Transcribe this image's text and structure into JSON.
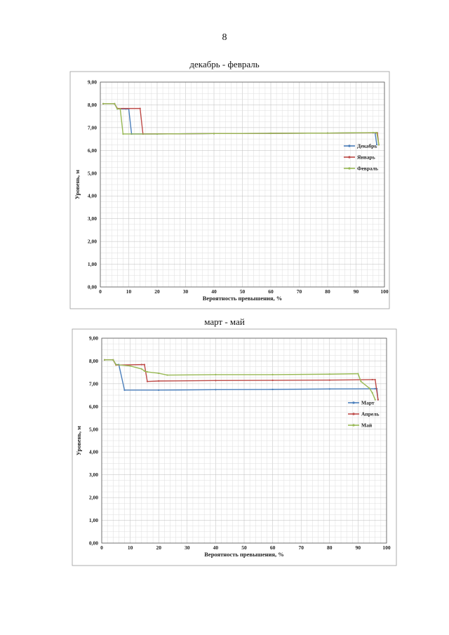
{
  "page_number": "8",
  "chart_data": [
    {
      "type": "line",
      "title": "декабрь - февраль",
      "xlabel": "Вероятность превышения, %",
      "ylabel": "Уровень, м",
      "xlim": [
        0,
        100
      ],
      "ylim": [
        0,
        9
      ],
      "xticks": [
        "0",
        "10",
        "20",
        "30",
        "40",
        "50",
        "60",
        "70",
        "80",
        "90",
        "100"
      ],
      "yticks": [
        "0,00",
        "1,00",
        "2,00",
        "3,00",
        "4,00",
        "5,00",
        "6,00",
        "7,00",
        "8,00",
        "9,00"
      ],
      "grid": true,
      "legend": "right",
      "series": [
        {
          "name": "Декабрь",
          "color": "#4a7ebb",
          "points": [
            [
              1,
              8.05
            ],
            [
              5,
              8.05
            ],
            [
              6,
              7.82
            ],
            [
              9,
              7.82
            ],
            [
              10,
              7.82
            ],
            [
              11,
              6.72
            ],
            [
              20,
              6.72
            ],
            [
              40,
              6.74
            ],
            [
              60,
              6.75
            ],
            [
              80,
              6.76
            ],
            [
              96,
              6.77
            ],
            [
              96.7,
              6.77
            ],
            [
              97.3,
              6.25
            ]
          ]
        },
        {
          "name": "Январь",
          "color": "#be4b48",
          "points": [
            [
              1,
              8.05
            ],
            [
              5,
              8.05
            ],
            [
              6,
              7.84
            ],
            [
              14,
              7.84
            ],
            [
              15,
              6.72
            ],
            [
              40,
              6.74
            ],
            [
              60,
              6.75
            ],
            [
              80,
              6.76
            ],
            [
              97,
              6.77
            ],
            [
              97.5,
              6.77
            ],
            [
              98,
              6.25
            ]
          ]
        },
        {
          "name": "Февраль",
          "color": "#98b954",
          "points": [
            [
              1,
              8.05
            ],
            [
              5,
              8.05
            ],
            [
              6,
              7.82
            ],
            [
              7,
              7.82
            ],
            [
              8,
              6.72
            ],
            [
              20,
              6.72
            ],
            [
              40,
              6.74
            ],
            [
              60,
              6.75
            ],
            [
              80,
              6.76
            ],
            [
              96,
              6.78
            ],
            [
              97.3,
              6.78
            ],
            [
              98,
              6.25
            ]
          ]
        }
      ]
    },
    {
      "type": "line",
      "title": "март - май",
      "xlabel": "Вероятность превышения, %",
      "ylabel": "Уровень, м",
      "xlim": [
        0,
        100
      ],
      "ylim": [
        0,
        9
      ],
      "xticks": [
        "0",
        "10",
        "20",
        "30",
        "40",
        "50",
        "60",
        "70",
        "80",
        "90",
        "100"
      ],
      "yticks": [
        "0,00",
        "1,00",
        "2,00",
        "3,00",
        "4,00",
        "5,00",
        "6,00",
        "7,00",
        "8,00",
        "9,00"
      ],
      "grid": true,
      "legend": "right",
      "series": [
        {
          "name": "Март",
          "color": "#4a7ebb",
          "points": [
            [
              1,
              8.05
            ],
            [
              4,
              8.05
            ],
            [
              5,
              7.84
            ],
            [
              6,
              7.84
            ],
            [
              8,
              6.72
            ],
            [
              20,
              6.72
            ],
            [
              40,
              6.74
            ],
            [
              60,
              6.75
            ],
            [
              80,
              6.77
            ],
            [
              96,
              6.78
            ],
            [
              96.6,
              6.78
            ],
            [
              97,
              6.3
            ]
          ]
        },
        {
          "name": "Апрель",
          "color": "#be4b48",
          "points": [
            [
              1,
              8.05
            ],
            [
              4,
              8.05
            ],
            [
              5,
              7.82
            ],
            [
              14,
              7.84
            ],
            [
              15,
              7.84
            ],
            [
              16,
              7.1
            ],
            [
              20,
              7.12
            ],
            [
              40,
              7.14
            ],
            [
              60,
              7.15
            ],
            [
              80,
              7.16
            ],
            [
              95,
              7.18
            ],
            [
              96,
              7.18
            ],
            [
              97,
              6.3
            ]
          ]
        },
        {
          "name": "Май",
          "color": "#98b954",
          "points": [
            [
              1,
              8.05
            ],
            [
              4,
              8.05
            ],
            [
              5,
              7.84
            ],
            [
              10,
              7.78
            ],
            [
              14,
              7.65
            ],
            [
              15,
              7.56
            ],
            [
              16,
              7.52
            ],
            [
              20,
              7.46
            ],
            [
              23,
              7.38
            ],
            [
              40,
              7.4
            ],
            [
              60,
              7.4
            ],
            [
              80,
              7.42
            ],
            [
              90,
              7.44
            ],
            [
              91,
              7.1
            ],
            [
              94,
              6.8
            ],
            [
              95,
              6.6
            ],
            [
              96,
              6.3
            ]
          ]
        }
      ]
    }
  ]
}
